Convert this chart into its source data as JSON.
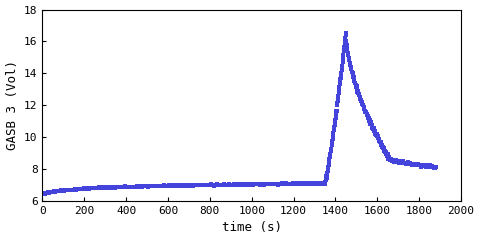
{
  "title": "",
  "xlabel": "time (s)",
  "ylabel": "GASB 3 (Vol)",
  "xlim": [
    0,
    2000
  ],
  "ylim": [
    6,
    18
  ],
  "xticks": [
    0,
    200,
    400,
    600,
    800,
    1000,
    1200,
    1400,
    1600,
    1800,
    2000
  ],
  "yticks": [
    6,
    8,
    10,
    12,
    14,
    16,
    18
  ],
  "line_color": "#4444dd",
  "marker": "s",
  "markersize": 2.5,
  "linewidth": 0.0,
  "background_color": "#ffffff",
  "font_family": "monospace",
  "baseline_start_y": 6.4,
  "baseline_end_y": 7.1,
  "baseline_end_t": 1350,
  "peak_t": 1450,
  "peak_y": 16.5,
  "end_t": 1880,
  "end_y": 8.1,
  "shoulder_t": 1660,
  "shoulder_y": 8.6
}
